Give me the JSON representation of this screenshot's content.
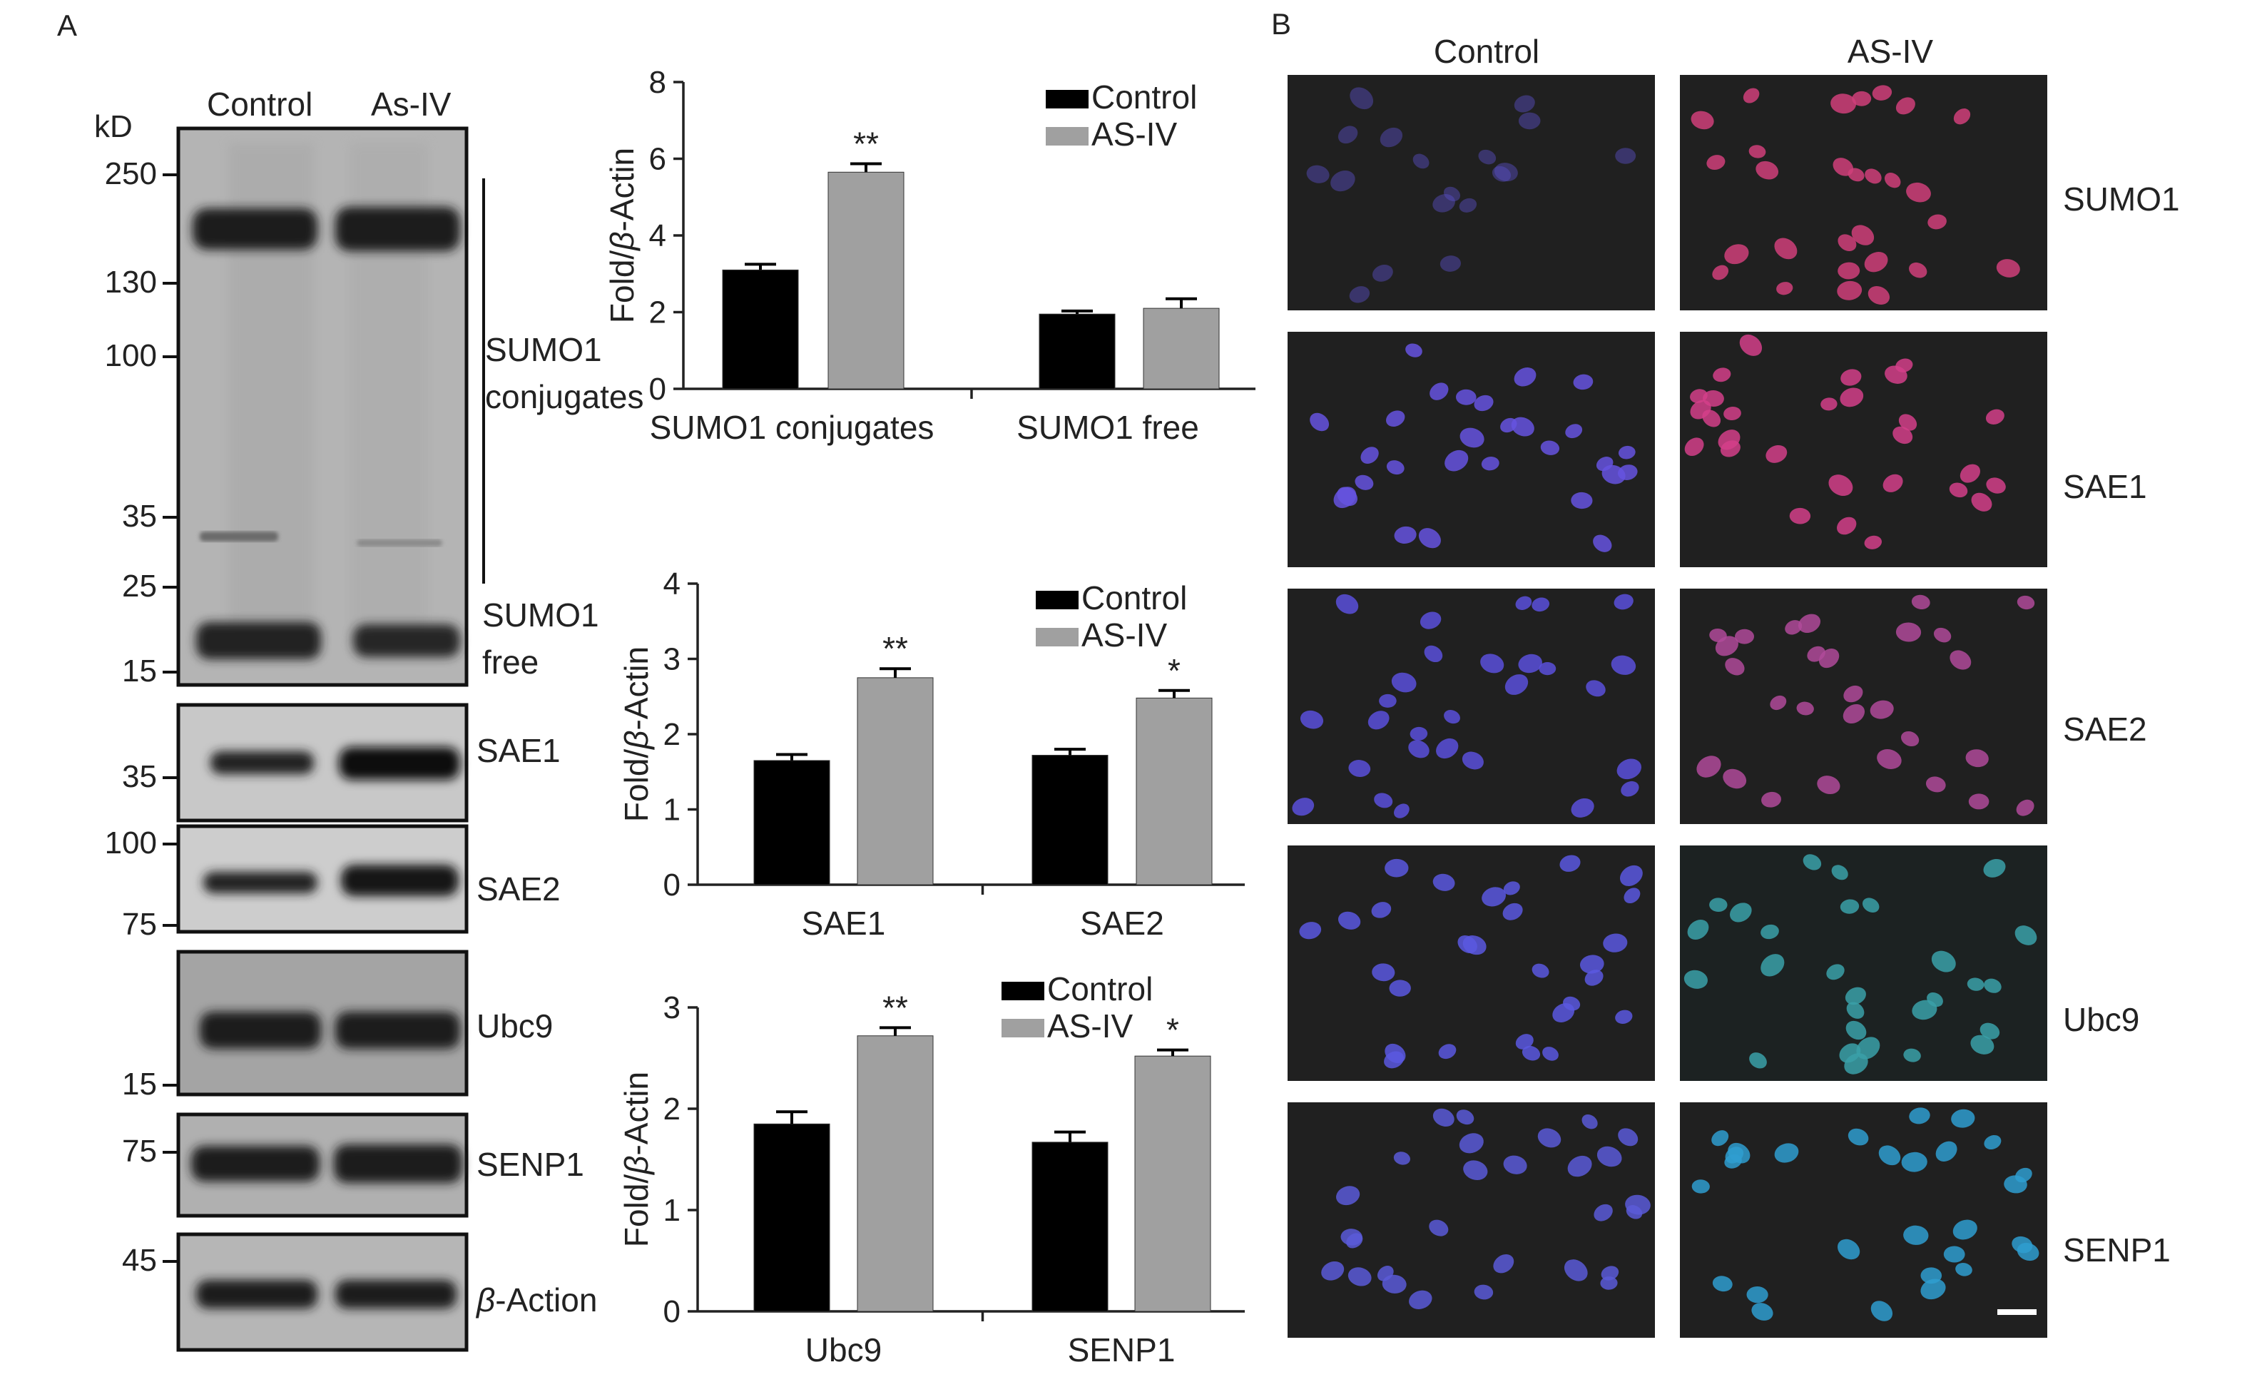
{
  "panel_a": {
    "letter": "A",
    "lane_labels": [
      "Control",
      "As-IV"
    ],
    "kd_label": "kD",
    "mw_markers": [
      "250",
      "130",
      "100",
      "35",
      "25",
      "15",
      "35",
      "100",
      "75",
      "15",
      "75",
      "45"
    ],
    "blot_labels": {
      "sumo1_conj": [
        "SUMO1",
        "conjugates"
      ],
      "sumo1_free": [
        "SUMO1",
        "free"
      ],
      "sae1": "SAE1",
      "sae2": "SAE2",
      "ubc9": "Ubc9",
      "senp1": "SENP1",
      "beta_prefix": "β",
      "beta_suffix": "-Action"
    }
  },
  "panel_b": {
    "letter": "B",
    "column_headers": [
      "Control",
      "AS-IV"
    ],
    "row_labels": [
      "SUMO1",
      "SAE1",
      "SAE2",
      "Ubc9",
      "SENP1"
    ]
  },
  "chart_data": [
    {
      "type": "bar",
      "categories": [
        "SUMO1 conjugates",
        "SUMO1 free"
      ],
      "series": [
        {
          "name": "Control",
          "values": [
            3.1,
            1.95
          ],
          "errors": [
            0.15,
            0.08
          ],
          "color": "#000000"
        },
        {
          "name": "AS-IV",
          "values": [
            5.65,
            2.1
          ],
          "errors": [
            0.22,
            0.25
          ],
          "color": "#a0a0a0"
        }
      ],
      "significance": [
        [
          "",
          ""
        ],
        [
          "**",
          ""
        ]
      ],
      "ylabel_prefix": "Fold/",
      "ylabel_beta": "β",
      "ylabel_suffix": "-Actin",
      "ylim": [
        0,
        8
      ],
      "yticks": [
        "0",
        "2",
        "4",
        "6",
        "8"
      ],
      "legend": "top-right"
    },
    {
      "type": "bar",
      "categories": [
        "SAE1",
        "SAE2"
      ],
      "series": [
        {
          "name": "Control",
          "values": [
            1.65,
            1.72
          ],
          "errors": [
            0.08,
            0.08
          ],
          "color": "#000000"
        },
        {
          "name": "AS-IV",
          "values": [
            2.75,
            2.48
          ],
          "errors": [
            0.12,
            0.1
          ],
          "color": "#a0a0a0"
        }
      ],
      "significance": [
        [
          "",
          ""
        ],
        [
          "**",
          "*"
        ]
      ],
      "ylabel_prefix": "Fold/",
      "ylabel_beta": "β",
      "ylabel_suffix": "-Actin",
      "ylim": [
        0,
        4
      ],
      "yticks": [
        "0",
        "1",
        "2",
        "3",
        "4"
      ],
      "legend": "top-right"
    },
    {
      "type": "bar",
      "categories": [
        "Ubc9",
        "SENP1"
      ],
      "series": [
        {
          "name": "Control",
          "values": [
            1.85,
            1.67
          ],
          "errors": [
            0.12,
            0.1
          ],
          "color": "#000000"
        },
        {
          "name": "AS-IV",
          "values": [
            2.72,
            2.52
          ],
          "errors": [
            0.08,
            0.06
          ],
          "color": "#a0a0a0"
        }
      ],
      "significance": [
        [
          "",
          ""
        ],
        [
          "**",
          "*"
        ]
      ],
      "ylabel_prefix": "Fold/",
      "ylabel_beta": "β",
      "ylabel_suffix": "-Actin",
      "ylim": [
        0,
        3
      ],
      "yticks": [
        "0",
        "1",
        "2",
        "3"
      ],
      "legend": "top-right"
    }
  ]
}
